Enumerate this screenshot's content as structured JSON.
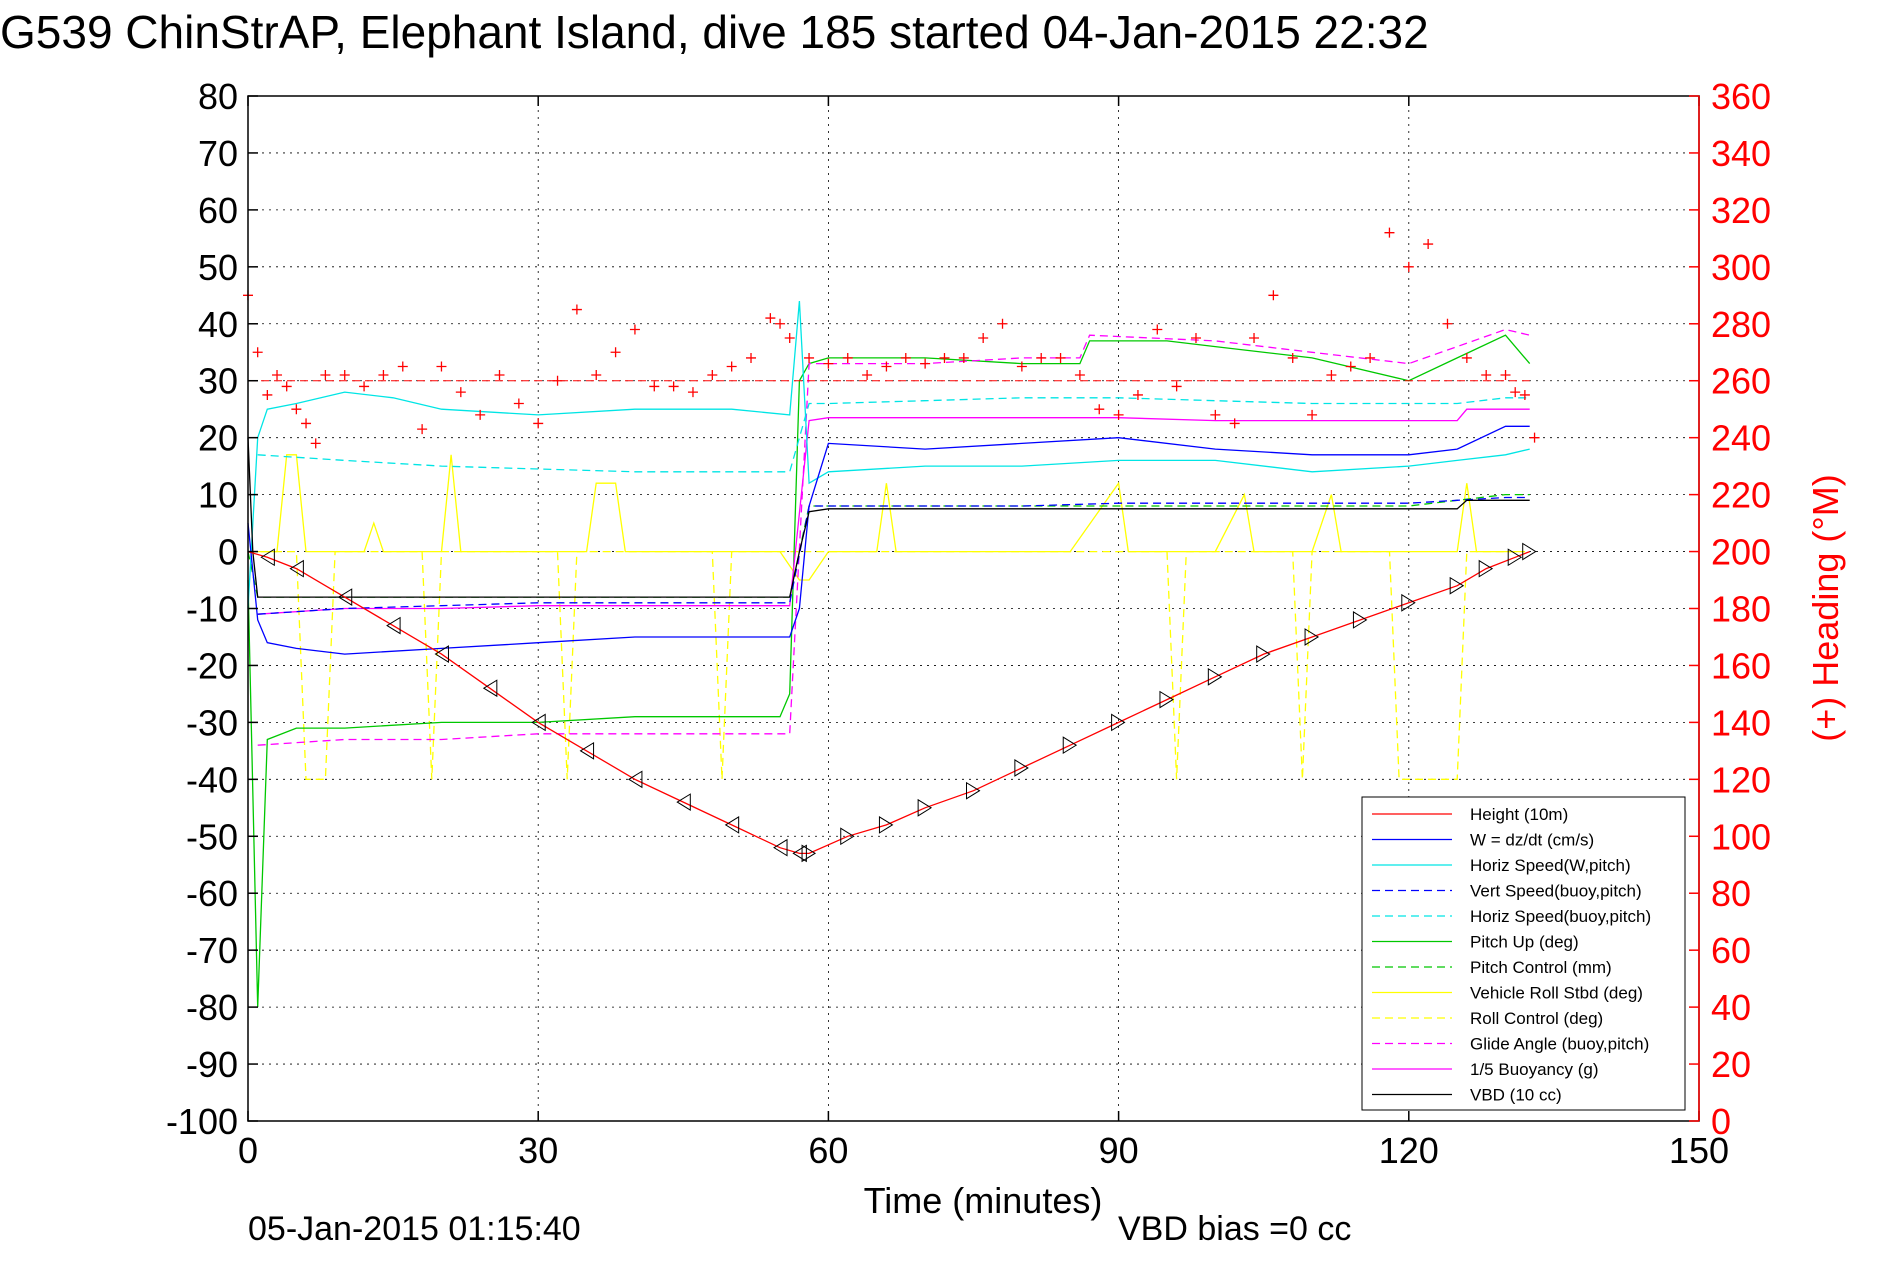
{
  "title": "G539 ChinStrAP, Elephant Island, dive 185 started 04-Jan-2015 22:32",
  "footer": {
    "timestamp": "05-Jan-2015 01:15:40",
    "vbd_bias": "VBD bias =0 cc"
  },
  "colors": {
    "height": "#ff0000",
    "w": "#0000ff",
    "horiz_speed": "#00e5e5",
    "pitch": "#00c800",
    "roll": "#ffff00",
    "glide": "#ff00ff",
    "vbd": "#000000",
    "heading": "#ff0000"
  },
  "chart_data": {
    "type": "line",
    "xlabel": "Time (minutes)",
    "ylabel": "",
    "y2label": "(+) Heading (°M)",
    "xlim": [
      0,
      150
    ],
    "ylim": [
      -100,
      80
    ],
    "y2lim": [
      0,
      360
    ],
    "xticks": [
      0,
      30,
      60,
      90,
      120,
      150
    ],
    "yticks": [
      80,
      70,
      60,
      50,
      40,
      30,
      20,
      10,
      0,
      -10,
      -20,
      -30,
      -40,
      -50,
      -60,
      -70,
      -80,
      -90,
      -100
    ],
    "y2ticks": [
      360,
      340,
      320,
      300,
      280,
      260,
      240,
      220,
      200,
      180,
      160,
      140,
      120,
      100,
      80,
      60,
      40,
      20,
      0
    ],
    "grid": true,
    "legend_position": "bottom-right",
    "series": [
      {
        "name": "Height (10m)",
        "color": "#ff0000",
        "dash": false,
        "x": [
          0,
          2,
          5,
          10,
          15,
          20,
          25,
          30,
          35,
          40,
          45,
          50,
          55,
          57,
          58,
          62,
          66,
          70,
          75,
          80,
          85,
          90,
          95,
          100,
          105,
          110,
          115,
          120,
          125,
          128,
          131,
          132.5
        ],
        "y": [
          0,
          -1,
          -3,
          -8,
          -13,
          -18,
          -24,
          -30,
          -35,
          -40,
          -44,
          -48,
          -52,
          -53,
          -53,
          -50,
          -48,
          -45,
          -42,
          -38,
          -34,
          -30,
          -26,
          -22,
          -18,
          -15,
          -12,
          -9,
          -6,
          -3,
          -1,
          0
        ]
      },
      {
        "name": "W = dz/dt (cm/s)",
        "color": "#0000ff",
        "dash": false,
        "x": [
          0,
          1,
          2,
          5,
          10,
          20,
          30,
          40,
          50,
          56,
          57,
          58,
          60,
          70,
          80,
          90,
          100,
          110,
          120,
          125,
          130,
          132.5
        ],
        "y": [
          5,
          -12,
          -16,
          -17,
          -18,
          -17,
          -16,
          -15,
          -15,
          -15,
          -10,
          8,
          19,
          18,
          19,
          20,
          18,
          17,
          17,
          18,
          22,
          22
        ]
      },
      {
        "name": "Horiz Speed(W,pitch)",
        "color": "#00e5e5",
        "dash": false,
        "x": [
          0,
          1,
          2,
          5,
          10,
          15,
          20,
          30,
          40,
          50,
          56,
          57,
          58,
          60,
          70,
          80,
          90,
          100,
          110,
          120,
          125,
          130,
          132.5
        ],
        "y": [
          -10,
          20,
          25,
          26,
          28,
          27,
          25,
          24,
          25,
          25,
          24,
          44,
          12,
          14,
          15,
          15,
          16,
          16,
          14,
          15,
          16,
          17,
          18
        ]
      },
      {
        "name": "Vert Speed(buoy,pitch)",
        "color": "#0000ff",
        "dash": true,
        "x": [
          1,
          10,
          20,
          30,
          40,
          50,
          56,
          58,
          60,
          70,
          80,
          90,
          100,
          110,
          120,
          125,
          130,
          132.5
        ],
        "y": [
          -11,
          -10,
          -9.5,
          -9,
          -9,
          -9,
          -9,
          8,
          8,
          8,
          8,
          8.5,
          8.5,
          8.5,
          8.5,
          9,
          9.5,
          9.5
        ]
      },
      {
        "name": "Horiz Speed(buoy,pitch)",
        "color": "#00e5e5",
        "dash": true,
        "x": [
          1,
          10,
          20,
          30,
          40,
          50,
          56,
          58,
          60,
          70,
          80,
          90,
          100,
          110,
          120,
          125,
          130,
          132.5
        ],
        "y": [
          17,
          16,
          15,
          14.5,
          14,
          14,
          14,
          26,
          26,
          26.5,
          27,
          27,
          26.5,
          26,
          26,
          26,
          27,
          27
        ]
      },
      {
        "name": "Pitch Up (deg)",
        "color": "#00c800",
        "dash": false,
        "x": [
          0,
          1,
          2,
          5,
          10,
          20,
          30,
          40,
          50,
          55,
          56,
          57,
          58,
          60,
          70,
          80,
          86,
          87,
          95,
          100,
          110,
          120,
          125,
          130,
          132.5
        ],
        "y": [
          -5,
          -80,
          -33,
          -31,
          -31,
          -30,
          -30,
          -29,
          -29,
          -29,
          -25,
          30,
          33,
          34,
          34,
          33,
          33,
          37,
          37,
          36,
          34,
          30,
          34,
          38,
          33
        ]
      },
      {
        "name": "Pitch Control (mm)",
        "color": "#00c800",
        "dash": true,
        "x": [
          0,
          1,
          2,
          10,
          30,
          56,
          58,
          70,
          80,
          90,
          100,
          110,
          120,
          125,
          130,
          132.5
        ],
        "y": [
          0,
          -8,
          -8,
          -8,
          -8,
          -8,
          8,
          8,
          8,
          8,
          8,
          8,
          8,
          9,
          10,
          10
        ]
      },
      {
        "name": "Vehicle Roll Stbd (deg)",
        "color": "#ffff00",
        "dash": false,
        "x": [
          0,
          3,
          4,
          5,
          6,
          10,
          12,
          13,
          14,
          20,
          21,
          22,
          30,
          35,
          36,
          38,
          39,
          48,
          55,
          57,
          58,
          60,
          65,
          66,
          67,
          70,
          80,
          85,
          90,
          91,
          100,
          103,
          104,
          110,
          112,
          113,
          118,
          120,
          125,
          126,
          127,
          130,
          132
        ],
        "y": [
          0,
          0,
          17,
          17,
          0,
          0,
          0,
          5,
          0,
          0,
          17,
          0,
          0,
          0,
          12,
          12,
          0,
          0,
          0,
          -5,
          -5,
          0,
          0,
          12,
          0,
          0,
          0,
          0,
          12,
          0,
          0,
          10,
          0,
          0,
          10,
          0,
          0,
          0,
          0,
          12,
          0,
          0,
          0
        ]
      },
      {
        "name": "Roll Control (deg)",
        "color": "#ffff00",
        "dash": true,
        "x": [
          0,
          5,
          6,
          8,
          9,
          18,
          19,
          20,
          32,
          33,
          34,
          48,
          49,
          50,
          56,
          80,
          95,
          96,
          97,
          108,
          109,
          110,
          118,
          119,
          125,
          126,
          132
        ],
        "y": [
          0,
          0,
          -40,
          -40,
          0,
          0,
          -40,
          0,
          0,
          -40,
          0,
          0,
          -40,
          0,
          0,
          0,
          0,
          -40,
          0,
          0,
          -40,
          0,
          0,
          -40,
          -40,
          0,
          0
        ]
      },
      {
        "name": "Glide Angle (buoy,pitch)",
        "color": "#ff00ff",
        "dash": true,
        "x": [
          1,
          10,
          20,
          30,
          40,
          50,
          56,
          58,
          60,
          70,
          80,
          86,
          87,
          100,
          110,
          120,
          125,
          130,
          132.5
        ],
        "y": [
          -34,
          -33,
          -33,
          -32,
          -32,
          -32,
          -32,
          33,
          33,
          33,
          34,
          34,
          38,
          37,
          35,
          33,
          36,
          39,
          38
        ]
      },
      {
        "name": "1/5 Buoyancy (g)",
        "color": "#ff00ff",
        "dash": false,
        "x": [
          1,
          10,
          20,
          30,
          40,
          50,
          56,
          58,
          60,
          70,
          80,
          90,
          100,
          110,
          120,
          125,
          126,
          130,
          132.5
        ],
        "y": [
          -11,
          -10,
          -10,
          -9.5,
          -9.5,
          -9.5,
          -9.5,
          23,
          23.5,
          23.5,
          23.5,
          23.5,
          23,
          23,
          23,
          23,
          25,
          25,
          25
        ]
      },
      {
        "name": "VBD (10 cc)",
        "color": "#000000",
        "dash": false,
        "x": [
          0,
          0.5,
          1,
          2,
          10,
          20,
          30,
          40,
          50,
          56,
          57,
          58,
          60,
          70,
          80,
          90,
          100,
          110,
          120,
          125,
          126,
          132.5
        ],
        "y": [
          20,
          0,
          -8,
          -8,
          -8,
          -8,
          -8,
          -8,
          -8,
          -8,
          0,
          7,
          7.5,
          7.5,
          7.5,
          7.5,
          7.5,
          7.5,
          7.5,
          7.5,
          9,
          9
        ]
      }
    ],
    "heading": {
      "name": "(+) Heading (°M)",
      "marker": "+",
      "color": "#ff0000",
      "x": [
        0,
        1,
        2,
        3,
        4,
        5,
        6,
        7,
        8,
        10,
        12,
        14,
        16,
        18,
        20,
        22,
        24,
        26,
        28,
        30,
        32,
        34,
        36,
        38,
        40,
        42,
        44,
        46,
        48,
        50,
        52,
        54,
        55,
        56,
        58,
        60,
        62,
        64,
        66,
        68,
        70,
        72,
        74,
        76,
        78,
        80,
        82,
        84,
        86,
        88,
        90,
        92,
        94,
        96,
        98,
        100,
        102,
        104,
        106,
        108,
        110,
        112,
        114,
        116,
        118,
        120,
        122,
        124,
        126,
        128,
        130,
        131,
        132,
        133
      ],
      "y": [
        290,
        270,
        255,
        262,
        258,
        250,
        245,
        238,
        262,
        262,
        258,
        262,
        265,
        243,
        265,
        256,
        248,
        262,
        252,
        245,
        260,
        285,
        262,
        270,
        278,
        258,
        258,
        256,
        262,
        265,
        268,
        282,
        280,
        275,
        268,
        266,
        268,
        262,
        265,
        268,
        266,
        268,
        268,
        275,
        280,
        265,
        268,
        268,
        262,
        250,
        248,
        255,
        278,
        258,
        275,
        248,
        245,
        275,
        290,
        268,
        248,
        262,
        265,
        268,
        312,
        300,
        308,
        280,
        268,
        262,
        262,
        256,
        255,
        240
      ]
    }
  },
  "legend": [
    {
      "label": "Height (10m)",
      "color": "#ff0000",
      "dash": false
    },
    {
      "label": "W = dz/dt (cm/s)",
      "color": "#0000ff",
      "dash": false
    },
    {
      "label": "Horiz Speed(W,pitch)",
      "color": "#00e5e5",
      "dash": false
    },
    {
      "label": "Vert Speed(buoy,pitch)",
      "color": "#0000ff",
      "dash": true
    },
    {
      "label": "Horiz Speed(buoy,pitch)",
      "color": "#00e5e5",
      "dash": true
    },
    {
      "label": "Pitch Up (deg)",
      "color": "#00c800",
      "dash": false
    },
    {
      "label": "Pitch Control (mm)",
      "color": "#00c800",
      "dash": true
    },
    {
      "label": "Vehicle Roll Stbd (deg)",
      "color": "#ffff00",
      "dash": false
    },
    {
      "label": "Roll Control (deg)",
      "color": "#ffff00",
      "dash": true
    },
    {
      "label": "Glide Angle (buoy,pitch)",
      "color": "#ff00ff",
      "dash": true
    },
    {
      "label": "1/5 Buoyancy (g)",
      "color": "#ff00ff",
      "dash": false
    },
    {
      "label": "VBD (10 cc)",
      "color": "#000000",
      "dash": false
    }
  ]
}
